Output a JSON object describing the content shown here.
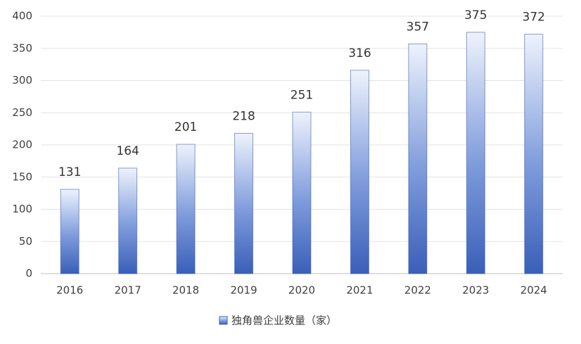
{
  "chart_data": {
    "type": "bar",
    "categories": [
      "2016",
      "2017",
      "2018",
      "2019",
      "2020",
      "2021",
      "2022",
      "2023",
      "2024"
    ],
    "series": [
      {
        "name": "独角兽企业数量（家）",
        "color": "#3a5fb8",
        "values": [
          131,
          164,
          201,
          218,
          251,
          316,
          357,
          375,
          372
        ]
      }
    ],
    "ylim": [
      0,
      400
    ],
    "yticks": [
      0,
      50,
      100,
      150,
      200,
      250,
      300,
      350,
      400
    ],
    "grid": true,
    "legend": "bottom"
  }
}
